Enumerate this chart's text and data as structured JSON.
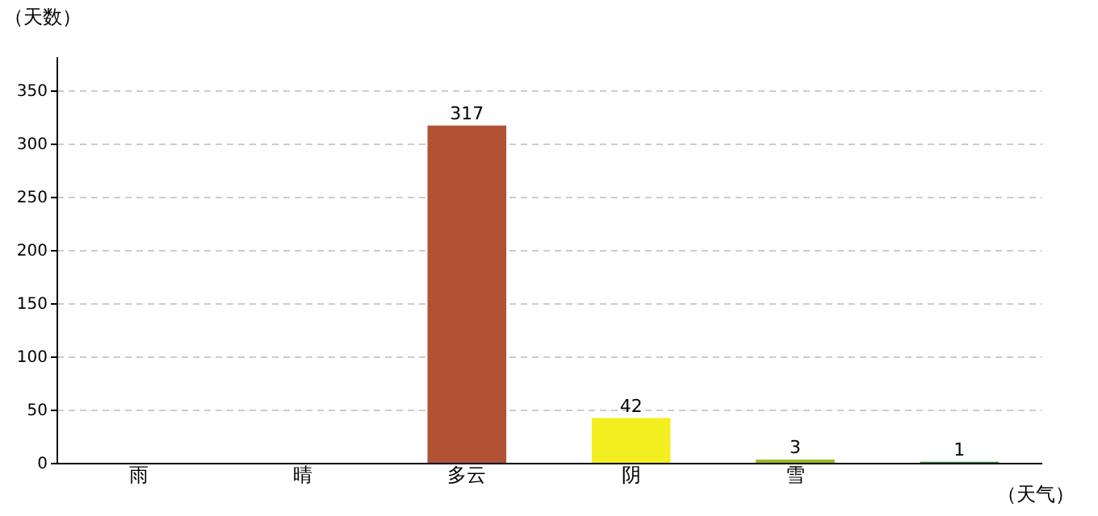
{
  "chart_data": {
    "type": "bar",
    "xlabel": "（天气）",
    "ylabel": "（天数）",
    "categories": [
      "雨",
      "晴",
      "多云",
      "阴",
      "雪",
      null
    ],
    "values": [
      null,
      null,
      317,
      42,
      3,
      1
    ],
    "colors": [
      "#e0e77f",
      "#0074d9",
      "#b25234",
      "#f3ee1f",
      "#9aba1c",
      "#2e9b46"
    ],
    "value_labels": [
      null,
      null,
      "317",
      "42",
      "3",
      "1"
    ],
    "ylim": [
      0,
      382
    ],
    "yticks": [
      0,
      50,
      100,
      150,
      200,
      250,
      300,
      350
    ],
    "grid": "y"
  }
}
